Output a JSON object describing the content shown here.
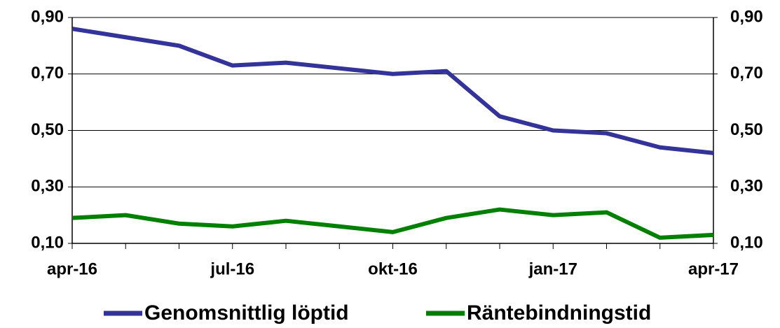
{
  "chart_data": {
    "type": "line",
    "categories": [
      "apr-16",
      null,
      null,
      "jul-16",
      null,
      null,
      "okt-16",
      null,
      null,
      "jan-17",
      null,
      null,
      "apr-17"
    ],
    "series": [
      {
        "name": "Genomsnittlig löptid",
        "color": "#333399",
        "values": [
          0.86,
          0.83,
          0.8,
          0.73,
          0.74,
          0.72,
          0.7,
          0.71,
          0.55,
          0.5,
          0.49,
          0.44,
          0.42
        ]
      },
      {
        "name": "Räntebindningstid",
        "color": "#008000",
        "values": [
          0.19,
          0.2,
          0.17,
          0.16,
          0.18,
          0.16,
          0.14,
          0.19,
          0.22,
          0.2,
          0.21,
          0.12,
          0.13
        ]
      }
    ],
    "ylim": [
      0.1,
      0.9
    ],
    "yticks": [
      {
        "value": 0.1,
        "label": "0,10"
      },
      {
        "value": 0.3,
        "label": "0,30"
      },
      {
        "value": 0.5,
        "label": "0,50"
      },
      {
        "value": 0.7,
        "label": "0,70"
      },
      {
        "value": 0.9,
        "label": "0,90"
      }
    ],
    "y2lim": [
      0.1,
      0.9
    ],
    "y2ticks": [
      {
        "value": 0.1,
        "label": "0,10"
      },
      {
        "value": 0.3,
        "label": "0,30"
      },
      {
        "value": 0.5,
        "label": "0,50"
      },
      {
        "value": 0.7,
        "label": "0,70"
      },
      {
        "value": 0.9,
        "label": "0,90"
      }
    ],
    "grid": true,
    "legend": "bottom"
  }
}
